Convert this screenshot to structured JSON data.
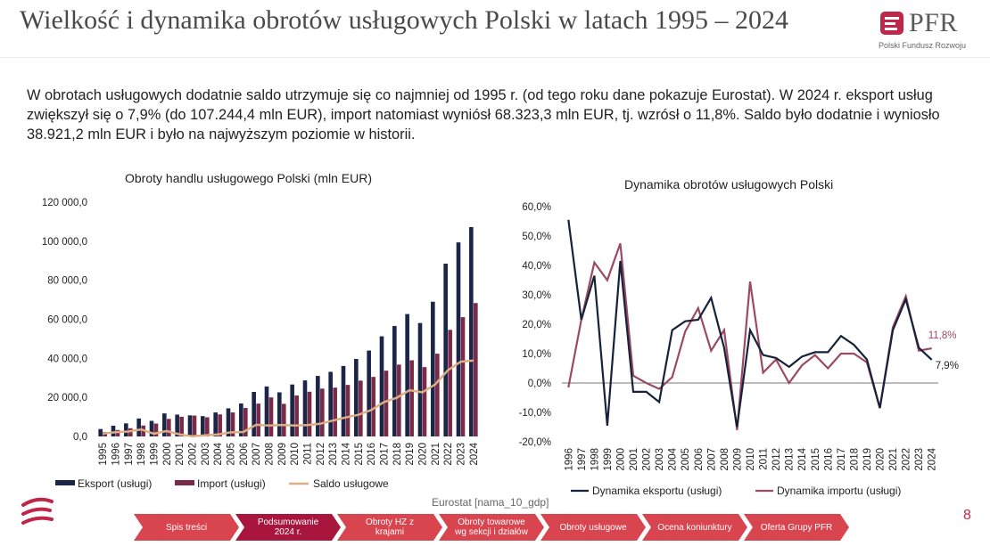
{
  "header": {
    "title": "Wielkość i dynamika obrotów usługowych Polski w latach 1995 – 2024",
    "logo_text": "PFR",
    "logo_subtitle": "Polski Fundusz Rozwoju"
  },
  "intro": "W obrotach usługowych dodatnie saldo utrzymuje się co najmniej od 1995 r. (od tego roku dane pokazuje Eurostat). W 2024 r. eksport usług zwiększył się o 7,9% (do 107.244,4 mln EUR), import natomiast wyniósł 68.323,3 mln EUR, tj. wzrósł o 11,8%. Saldo było dodatnie i wyniosło 38.921,2 mln EUR i było na najwyższym poziomie w historii.",
  "source": "Eurostat [nama_10_gdp]",
  "page_number": "8",
  "nav": [
    {
      "label": "Spis treści",
      "color": "#d8454f"
    },
    {
      "label": "Podsumowanie\n2024 r.",
      "color": "#a8163e"
    },
    {
      "label": "Obroty HZ z\nkrajami",
      "color": "#d8454f"
    },
    {
      "label": "Obroty towarowe\nwg sekcji i działów",
      "color": "#d8454f"
    },
    {
      "label": "Obroty usługowe",
      "color": "#d8454f"
    },
    {
      "label": "Ocena koniunktury",
      "color": "#d8454f"
    },
    {
      "label": "Oferta Grupy PFR",
      "color": "#d8454f"
    }
  ],
  "colors": {
    "export": "#1b2547",
    "import": "#7a2a48",
    "saldo": "#dcae86",
    "dyn_export": "#15223a",
    "dyn_import": "#9c4a63",
    "accent": "#c0264a"
  },
  "chart_data": [
    {
      "type": "bar",
      "title": "Obroty handlu usługowego Polski (mln EUR)",
      "categories": [
        "1995",
        "1996",
        "1997",
        "1998",
        "1999",
        "2000",
        "2001",
        "2002",
        "2003",
        "2004",
        "2005",
        "2006",
        "2007",
        "2008",
        "2009",
        "2010",
        "2011",
        "2012",
        "2013",
        "2014",
        "2015",
        "2016",
        "2017",
        "2018",
        "2019",
        "2020",
        "2021",
        "2022",
        "2023",
        "2024"
      ],
      "series": [
        {
          "name": "Eksport (usługi)",
          "type": "bar",
          "values": [
            3800,
            5500,
            6700,
            9200,
            8000,
            11800,
            11200,
            10800,
            10400,
            12300,
            14400,
            16900,
            22800,
            25600,
            22600,
            26600,
            28700,
            31000,
            33100,
            36100,
            39700,
            44000,
            51300,
            56600,
            62700,
            58100,
            69000,
            88500,
            99400,
            107244.4
          ]
        },
        {
          "name": "Import (usługi)",
          "type": "bar",
          "values": [
            2300,
            3300,
            4200,
            5600,
            6600,
            9000,
            10100,
            10700,
            9800,
            11300,
            12300,
            14600,
            16800,
            20000,
            16700,
            21000,
            22900,
            24500,
            25000,
            26400,
            28600,
            30500,
            33700,
            36800,
            39000,
            35500,
            42400,
            54600,
            61100,
            68323.3
          ]
        },
        {
          "name": "Saldo usługowe",
          "type": "line",
          "values": [
            1500,
            2200,
            2500,
            3600,
            1400,
            2800,
            1100,
            100,
            600,
            1000,
            2100,
            2300,
            6000,
            5600,
            5900,
            5600,
            5800,
            6500,
            8100,
            9700,
            11100,
            13500,
            17600,
            19800,
            23700,
            22600,
            26600,
            33900,
            38300,
            38921.2
          ]
        }
      ],
      "ylim": [
        0,
        120000
      ],
      "yticks": [
        "0,0",
        "20 000,0",
        "40 000,0",
        "60 000,0",
        "80 000,0",
        "100 000,0",
        "120 000,0"
      ],
      "legend_position": "bottom"
    },
    {
      "type": "line",
      "title": "Dynamika obrotów usługowych Polski",
      "categories": [
        "1996",
        "1997",
        "1998",
        "1999",
        "2000",
        "2001",
        "2002",
        "2003",
        "2004",
        "2005",
        "2006",
        "2007",
        "2008",
        "2009",
        "2010",
        "2011",
        "2012",
        "2013",
        "2014",
        "2015",
        "2016",
        "2017",
        "2018",
        "2019",
        "2020",
        "2021",
        "2022",
        "2023",
        "2024"
      ],
      "series": [
        {
          "name": "Dynamika eksportu (usługi)",
          "values": [
            55.5,
            21.5,
            36.5,
            -14.5,
            41.5,
            -3,
            -3,
            -6.5,
            18,
            21,
            21.5,
            29,
            12,
            -15,
            18,
            9.5,
            8.5,
            5.5,
            9,
            10.5,
            10.5,
            16,
            13,
            8,
            -8.5,
            18,
            28.5,
            12,
            7.9
          ]
        },
        {
          "name": "Dynamika importu (usługi)",
          "values": [
            -1.5,
            21.5,
            41,
            35,
            47.5,
            2.5,
            0,
            -2,
            2,
            17.5,
            25.5,
            11,
            18,
            -16,
            34.5,
            3.5,
            8,
            0,
            6,
            9.5,
            5,
            10,
            10,
            7,
            -8.5,
            19,
            29.5,
            11,
            11.8
          ]
        }
      ],
      "ylim": [
        -20,
        60
      ],
      "yticks": [
        "-20,0%",
        "-10,0%",
        "0,0%",
        "10,0%",
        "20,0%",
        "30,0%",
        "40,0%",
        "50,0%",
        "60,0%"
      ],
      "annotations": {
        "export_last": "7,9%",
        "import_last": "11,8%"
      },
      "legend_position": "bottom"
    }
  ]
}
